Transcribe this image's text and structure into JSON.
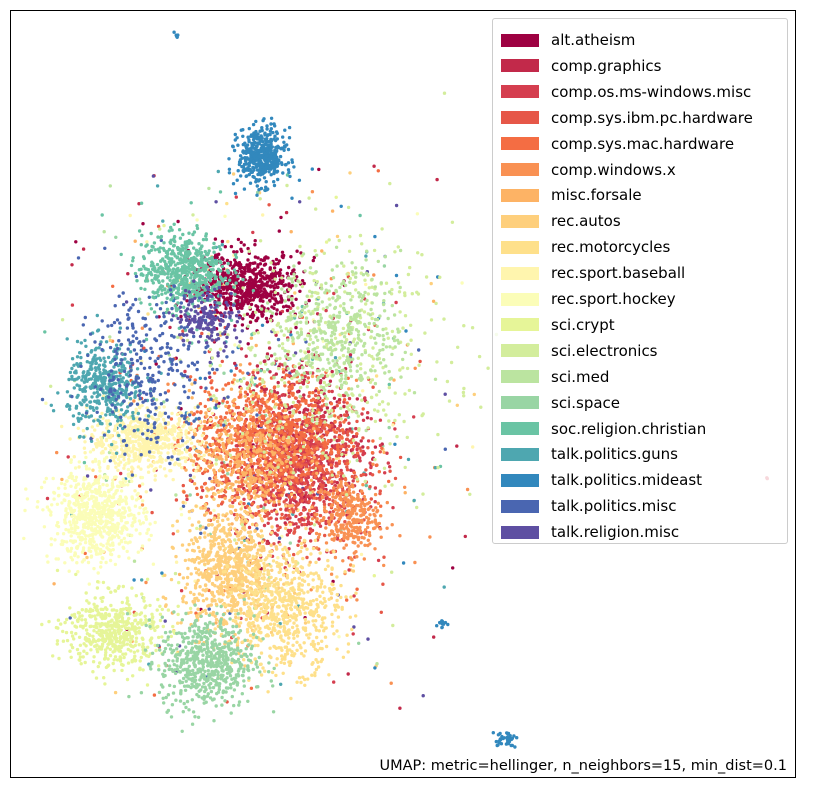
{
  "chart_data": {
    "type": "scatter",
    "title": "",
    "xlabel": "",
    "ylabel": "",
    "grid": false,
    "axes_visible": false,
    "legend": {
      "placement": "top-right"
    },
    "caption": "UMAP: metric=hellinger, n_neighbors=15, min_dist=0.1",
    "series": [
      {
        "name": "alt.atheism",
        "color": "#9e0142"
      },
      {
        "name": "comp.graphics",
        "color": "#c2294a"
      },
      {
        "name": "comp.os.ms-windows.misc",
        "color": "#d53e4f"
      },
      {
        "name": "comp.sys.ibm.pc.hardware",
        "color": "#e65748"
      },
      {
        "name": "comp.sys.mac.hardware",
        "color": "#f46d43"
      },
      {
        "name": "comp.windows.x",
        "color": "#f99153"
      },
      {
        "name": "misc.forsale",
        "color": "#fdb365"
      },
      {
        "name": "rec.autos",
        "color": "#fecf7c"
      },
      {
        "name": "rec.motorcycles",
        "color": "#fee08b"
      },
      {
        "name": "rec.sport.baseball",
        "color": "#fff5ae"
      },
      {
        "name": "rec.sport.hockey",
        "color": "#fbfdb8"
      },
      {
        "name": "sci.crypt",
        "color": "#e6f598"
      },
      {
        "name": "sci.electronics",
        "color": "#d3ed9c"
      },
      {
        "name": "sci.med",
        "color": "#bbe4a0"
      },
      {
        "name": "sci.space",
        "color": "#99d5a4"
      },
      {
        "name": "soc.religion.christian",
        "color": "#6ac4a4"
      },
      {
        "name": "talk.politics.guns",
        "color": "#4ea7b0"
      },
      {
        "name": "talk.politics.mideast",
        "color": "#3288bd"
      },
      {
        "name": "talk.politics.misc",
        "color": "#4a66b1"
      },
      {
        "name": "talk.religion.misc",
        "color": "#5e4fa2"
      }
    ],
    "clusters": [
      {
        "series": 0,
        "cx": 0.3,
        "cy": 0.64,
        "sx": 0.035,
        "sy": 0.022,
        "n": 650
      },
      {
        "series": 1,
        "cx": 0.375,
        "cy": 0.45,
        "sx": 0.04,
        "sy": 0.06,
        "n": 300
      },
      {
        "series": 2,
        "cx": 0.365,
        "cy": 0.41,
        "sx": 0.045,
        "sy": 0.05,
        "n": 700
      },
      {
        "series": 3,
        "cx": 0.36,
        "cy": 0.4,
        "sx": 0.05,
        "sy": 0.05,
        "n": 450
      },
      {
        "series": 4,
        "cx": 0.33,
        "cy": 0.44,
        "sx": 0.05,
        "sy": 0.04,
        "n": 800
      },
      {
        "series": 5,
        "cx": 0.43,
        "cy": 0.34,
        "sx": 0.02,
        "sy": 0.025,
        "n": 300
      },
      {
        "series": 6,
        "cx": 0.3,
        "cy": 0.42,
        "sx": 0.035,
        "sy": 0.04,
        "n": 400
      },
      {
        "series": 7,
        "cx": 0.28,
        "cy": 0.27,
        "sx": 0.03,
        "sy": 0.04,
        "n": 750
      },
      {
        "series": 8,
        "cx": 0.35,
        "cy": 0.22,
        "sx": 0.035,
        "sy": 0.04,
        "n": 650
      },
      {
        "series": 9,
        "cx": 0.17,
        "cy": 0.44,
        "sx": 0.035,
        "sy": 0.02,
        "n": 600
      },
      {
        "series": 10,
        "cx": 0.11,
        "cy": 0.34,
        "sx": 0.03,
        "sy": 0.03,
        "n": 700
      },
      {
        "series": 11,
        "cx": 0.13,
        "cy": 0.19,
        "sx": 0.03,
        "sy": 0.025,
        "n": 500
      },
      {
        "series": 12,
        "cx": 0.4,
        "cy": 0.55,
        "sx": 0.08,
        "sy": 0.08,
        "n": 400
      },
      {
        "series": 13,
        "cx": 0.42,
        "cy": 0.58,
        "sx": 0.04,
        "sy": 0.045,
        "n": 400
      },
      {
        "series": 14,
        "cx": 0.25,
        "cy": 0.15,
        "sx": 0.03,
        "sy": 0.03,
        "n": 600
      },
      {
        "series": 15,
        "cx": 0.22,
        "cy": 0.66,
        "sx": 0.027,
        "sy": 0.025,
        "n": 600
      },
      {
        "series": 16,
        "cx": 0.12,
        "cy": 0.51,
        "sx": 0.024,
        "sy": 0.028,
        "n": 400
      },
      {
        "series": 17,
        "cx": 0.32,
        "cy": 0.81,
        "sx": 0.015,
        "sy": 0.018,
        "n": 450
      },
      {
        "series": 18,
        "cx": 0.18,
        "cy": 0.53,
        "sx": 0.04,
        "sy": 0.05,
        "n": 300
      },
      {
        "series": 19,
        "cx": 0.25,
        "cy": 0.6,
        "sx": 0.02,
        "sy": 0.02,
        "n": 160
      }
    ],
    "outlier_groups": [
      {
        "series": 17,
        "cx": 0.55,
        "cy": 0.2,
        "sx": 0.003,
        "sy": 0.003,
        "n": 12
      },
      {
        "series": 17,
        "cx": 0.63,
        "cy": 0.05,
        "sx": 0.008,
        "sy": 0.005,
        "n": 35
      },
      {
        "series": 17,
        "cx": 0.21,
        "cy": 0.97,
        "sx": 0.002,
        "sy": 0.002,
        "n": 5
      },
      {
        "series": 2,
        "cx": 0.965,
        "cy": 0.39,
        "sx": 0.001,
        "sy": 0.001,
        "n": 2
      }
    ],
    "noise_points_per_series": 40
  }
}
